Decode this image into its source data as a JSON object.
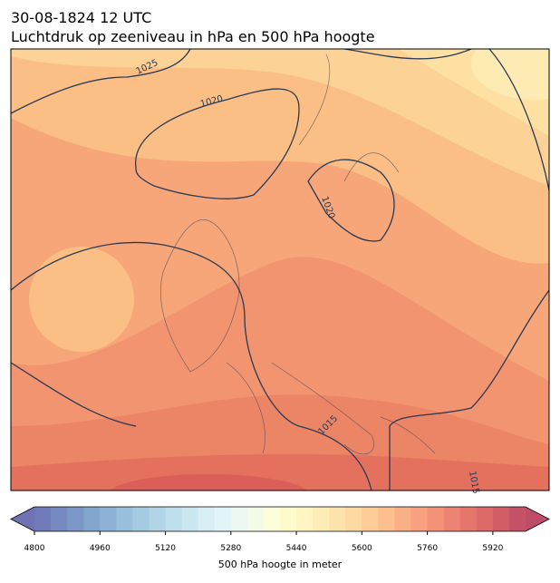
{
  "header": {
    "date": "30-08-1824 12 UTC",
    "title": "Luchtdruk op zeeniveau in hPa en 500 hPa hoogte"
  },
  "map": {
    "isobar_labels": [
      "1025",
      "1020",
      "1020",
      "1015",
      "1015"
    ]
  },
  "colorbar": {
    "label": "500 hPa hoogte in meter",
    "vmin": 4800,
    "vmax": 6000,
    "step": 40,
    "ticks": [
      4800,
      4960,
      5120,
      5280,
      5440,
      5600,
      5760,
      5920
    ],
    "colormap": [
      "#313695",
      "#4575b4",
      "#74add1",
      "#abd9e9",
      "#e0f3f8",
      "#ffffbf",
      "#fee090",
      "#fdae61",
      "#f46d43",
      "#d73027",
      "#a50026"
    ],
    "alpha": 0.7
  }
}
